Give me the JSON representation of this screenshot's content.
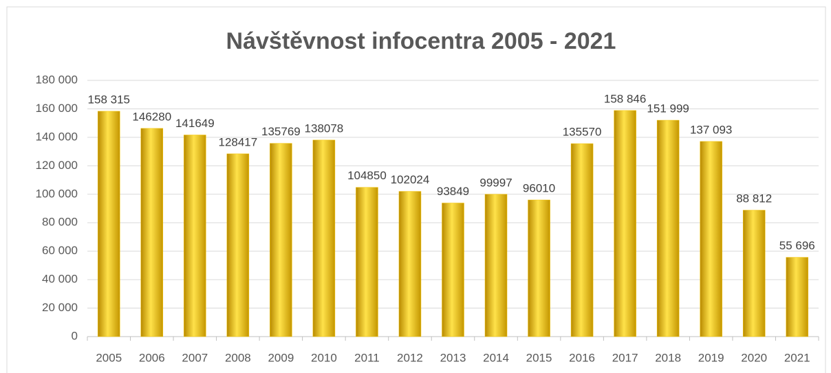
{
  "chart_data": {
    "type": "bar",
    "title": "Návštěvnost infocentra 2005 - 2021",
    "categories": [
      "2005",
      "2006",
      "2007",
      "2008",
      "2009",
      "2010",
      "2011",
      "2012",
      "2013",
      "2014",
      "2015",
      "2016",
      "2017",
      "2018",
      "2019",
      "2020",
      "2021"
    ],
    "values": [
      158315,
      146280,
      141649,
      128417,
      135769,
      138078,
      104850,
      102024,
      93849,
      99997,
      96010,
      135570,
      158846,
      151999,
      137093,
      88812,
      55696
    ],
    "value_labels": [
      "158 315",
      "146280",
      "141649",
      "128417",
      "135769",
      "138078",
      "104850",
      "102024",
      "93849",
      "99997",
      "96010",
      "135570",
      "158 846",
      "151 999",
      "137 093",
      "88 812",
      "55 696"
    ],
    "color": "#f5c400",
    "ylim": [
      0,
      180000
    ],
    "yticks": [
      0,
      {
        "value": 20000,
        "label": "20 000"
      },
      {
        "value": 40000,
        "label": "40 000"
      },
      {
        "value": 60000,
        "label": "60 000"
      },
      {
        "value": 80000,
        "label": "80 000"
      },
      {
        "value": 100000,
        "label": "100 000"
      },
      {
        "value": 120000,
        "label": "120 000"
      },
      {
        "value": 140000,
        "label": "140 000"
      },
      {
        "value": 160000,
        "label": "160 000"
      },
      {
        "value": 180000,
        "label": "180 000"
      }
    ],
    "grid": true
  }
}
